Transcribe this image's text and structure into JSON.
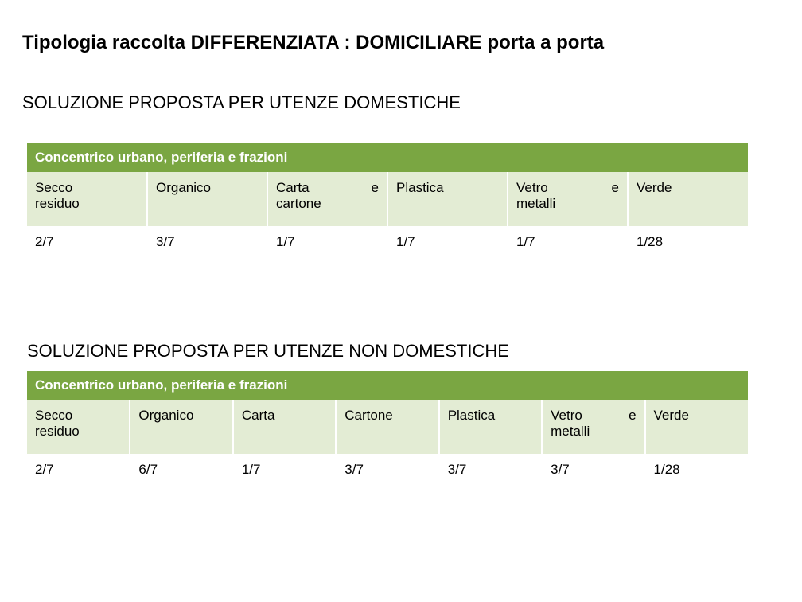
{
  "title": "Tipologia raccolta DIFFERENZIATA :  DOMICILIARE porta a porta",
  "section1": {
    "heading": "SOLUZIONE PROPOSTA PER UTENZE DOMESTICHE",
    "table": {
      "header": "Concentrico urbano, periferia e frazioni",
      "header_bg": "#7aa642",
      "header_fg": "#ffffff",
      "label_bg": "#e3ecd4",
      "label_fg": "#000000",
      "value_bg": "#ffffff",
      "value_fg": "#000000",
      "border_color": "#ffffff",
      "columns": [
        {
          "label": "Secco residuo"
        },
        {
          "label": "Organico"
        },
        {
          "label": "Carta",
          "suffix": "e",
          "sub": "cartone"
        },
        {
          "label": "Plastica"
        },
        {
          "label": "Vetro",
          "suffix": "e",
          "sub": "metalli"
        },
        {
          "label": "Verde"
        }
      ],
      "values": [
        "2/7",
        "3/7",
        "1/7",
        "1/7",
        "1/7",
        "1/28"
      ]
    }
  },
  "section2": {
    "heading": "SOLUZIONE PROPOSTA PER UTENZE NON DOMESTICHE",
    "table": {
      "header": "Concentrico urbano, periferia e frazioni",
      "header_bg": "#7aa642",
      "header_fg": "#ffffff",
      "label_bg": "#e3ecd4",
      "label_fg": "#000000",
      "value_bg": "#ffffff",
      "value_fg": "#000000",
      "border_color": "#ffffff",
      "columns": [
        {
          "label": "Secco residuo"
        },
        {
          "label": "Organico"
        },
        {
          "label": "Carta"
        },
        {
          "label": "Cartone"
        },
        {
          "label": "Plastica"
        },
        {
          "label": "Vetro",
          "suffix": "e",
          "sub": "metalli"
        },
        {
          "label": "Verde"
        }
      ],
      "values": [
        "2/7",
        "6/7",
        "1/7",
        "3/7",
        "3/7",
        "3/7",
        "1/28"
      ]
    }
  }
}
